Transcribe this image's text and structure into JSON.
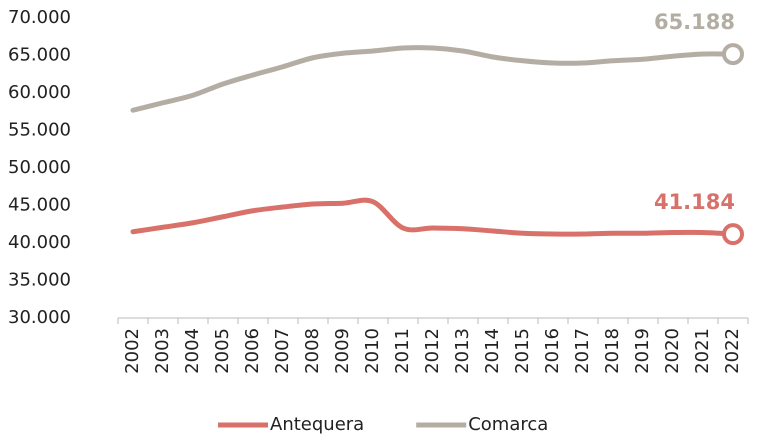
{
  "chart_data": {
    "type": "line",
    "categories": [
      "2002",
      "2003",
      "2004",
      "2005",
      "2006",
      "2007",
      "2008",
      "2009",
      "2010",
      "2011",
      "2012",
      "2013",
      "2014",
      "2015",
      "2016",
      "2017",
      "2018",
      "2019",
      "2020",
      "2021",
      "2022"
    ],
    "series": [
      {
        "name": "Antequera",
        "color": "#d9716b",
        "values": [
          41500,
          42100,
          42700,
          43500,
          44300,
          44800,
          45200,
          45300,
          45500,
          42000,
          42000,
          41900,
          41600,
          41300,
          41200,
          41200,
          41300,
          41300,
          41400,
          41400,
          41184
        ],
        "value_labels": [
          null,
          null,
          null,
          null,
          null,
          null,
          null,
          null,
          null,
          null,
          null,
          null,
          null,
          null,
          null,
          null,
          null,
          null,
          null,
          null,
          "41.184"
        ]
      },
      {
        "name": "Comarca",
        "color": "#b4ada4",
        "values": [
          57700,
          58700,
          59700,
          61200,
          62400,
          63500,
          64700,
          65300,
          65600,
          66000,
          66000,
          65600,
          64800,
          64300,
          64000,
          64000,
          64300,
          64500,
          64900,
          65200,
          65188
        ],
        "value_labels": [
          null,
          null,
          null,
          null,
          null,
          null,
          null,
          null,
          null,
          null,
          null,
          null,
          null,
          null,
          null,
          null,
          null,
          null,
          null,
          null,
          "65.188"
        ]
      }
    ],
    "ylim": [
      30000,
      70000
    ],
    "yticks": [
      {
        "value": 30000,
        "label": "30.000"
      },
      {
        "value": 35000,
        "label": "35.000"
      },
      {
        "value": 40000,
        "label": "40.000"
      },
      {
        "value": 45000,
        "label": "45.000"
      },
      {
        "value": 50000,
        "label": "50.000"
      },
      {
        "value": 55000,
        "label": "55.000"
      },
      {
        "value": 60000,
        "label": "60.000"
      },
      {
        "value": 65000,
        "label": "65.000"
      },
      {
        "value": 70000,
        "label": "70.000"
      }
    ],
    "grid": false,
    "legend": "bottom"
  }
}
